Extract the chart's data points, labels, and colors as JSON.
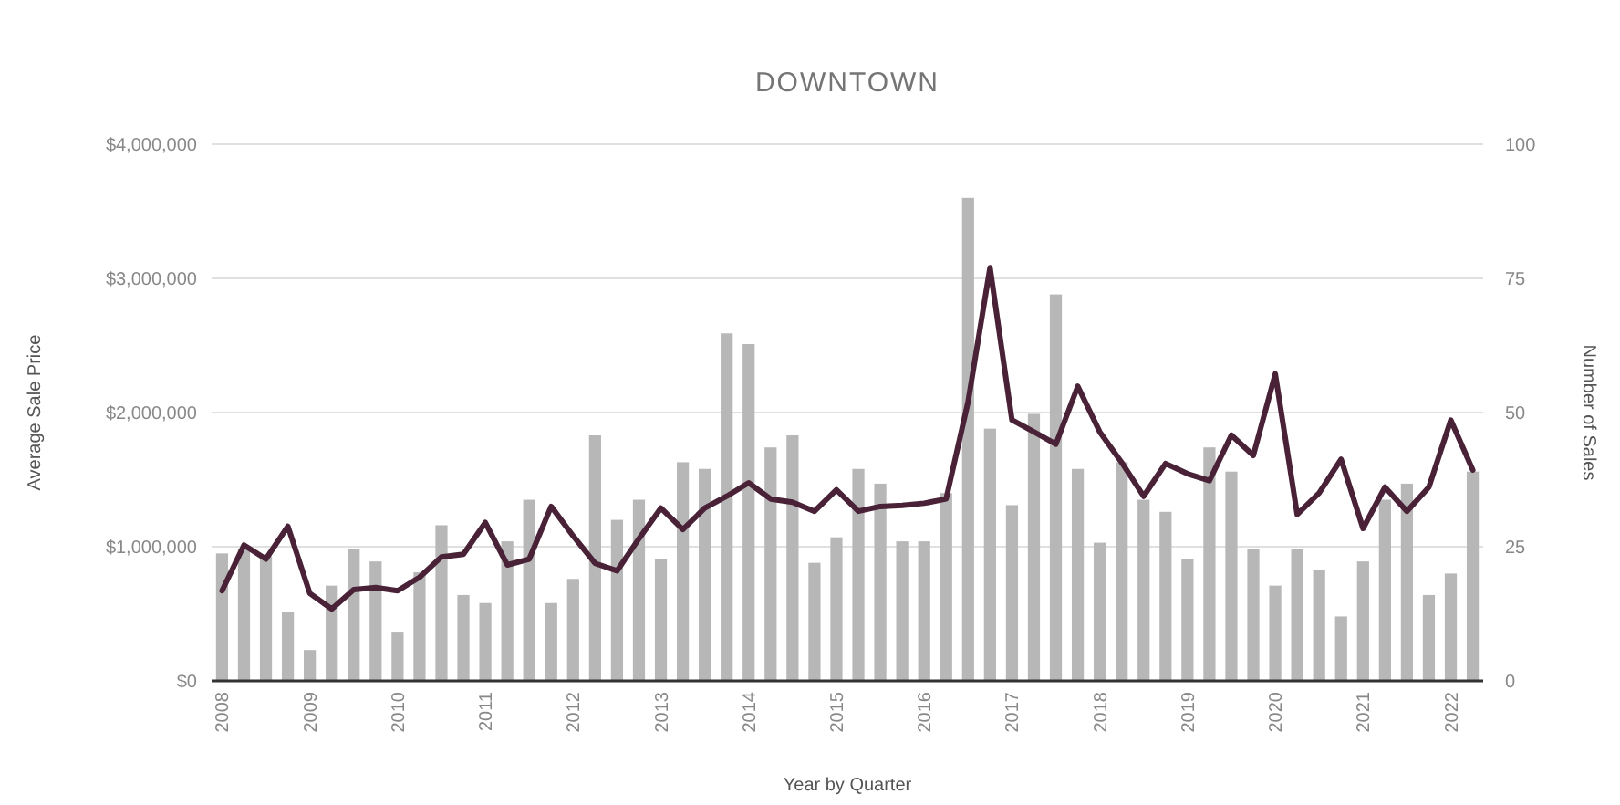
{
  "chart_data": {
    "type": "bar",
    "title": "DOWNTOWN",
    "xlabel": "Year by Quarter",
    "ylabel": "Average Sale Price",
    "y2label": "Number of Sales",
    "categories": [
      "2008",
      null,
      null,
      null,
      "2009",
      null,
      null,
      null,
      "2010",
      null,
      null,
      null,
      "2011",
      null,
      null,
      null,
      "2012",
      null,
      null,
      null,
      "2013",
      null,
      null,
      null,
      "2014",
      null,
      null,
      null,
      "2015",
      null,
      null,
      null,
      "2016",
      null,
      null,
      null,
      "2017",
      null,
      null,
      null,
      "2018",
      null,
      null,
      null,
      "2019",
      null,
      null,
      null,
      "2020",
      null,
      null,
      null,
      "2021",
      null,
      null,
      null,
      "2022",
      null
    ],
    "series": [
      {
        "color": "#b7b7b7",
        "values": [
          950000,
          980000,
          930000,
          510000,
          230000,
          710000,
          980000,
          890000,
          360000,
          810000,
          1160000,
          640000,
          580000,
          1040000,
          1350000,
          580000,
          760000,
          1830000,
          1200000,
          1350000,
          910000,
          1630000,
          1580000,
          2590000,
          2510000,
          1740000,
          1830000,
          880000,
          1070000,
          1580000,
          1470000,
          1040000,
          1040000,
          1400000,
          3600000,
          1880000,
          1310000,
          1990000,
          2880000,
          1580000,
          1030000,
          1630000,
          1350000,
          1260000,
          910000,
          1740000,
          1560000,
          980000,
          710000,
          980000,
          830000,
          480000,
          890000,
          1350000,
          1470000,
          640000,
          800000,
          1560000
        ]
      },
      {
        "type": "line",
        "axis": "y2",
        "color": "#4a2237",
        "values": [
          16.8,
          25.3,
          22.7,
          28.8,
          16.3,
          13.4,
          17,
          17.4,
          16.8,
          19.3,
          23.1,
          23.6,
          29.5,
          21.6,
          22.7,
          32.5,
          27,
          21.9,
          20.5,
          26.5,
          32.2,
          28.2,
          32.2,
          34.4,
          36.9,
          33.9,
          33.3,
          31.6,
          35.6,
          31.6,
          32.5,
          32.7,
          33.1,
          33.9,
          52,
          77,
          48.6,
          46.4,
          44.1,
          54.9,
          46.4,
          40.7,
          34.4,
          40.5,
          38.6,
          37.3,
          45.8,
          42,
          57.2,
          31,
          35,
          41.3,
          28.4,
          36.1,
          31.6,
          36.1,
          48.6,
          39.3
        ]
      }
    ],
    "ylim": [
      0,
      4000000
    ],
    "yticks": [
      {
        "value": 0,
        "label": "$0"
      },
      {
        "value": 1000000,
        "label": "$1,000,000"
      },
      {
        "value": 2000000,
        "label": "$2,000,000"
      },
      {
        "value": 3000000,
        "label": "$3,000,000"
      },
      {
        "value": 4000000,
        "label": "$4,000,000"
      }
    ],
    "y2lim": [
      0,
      100
    ],
    "y2ticks": [
      0,
      25,
      50,
      75,
      100
    ],
    "grid": "y"
  }
}
